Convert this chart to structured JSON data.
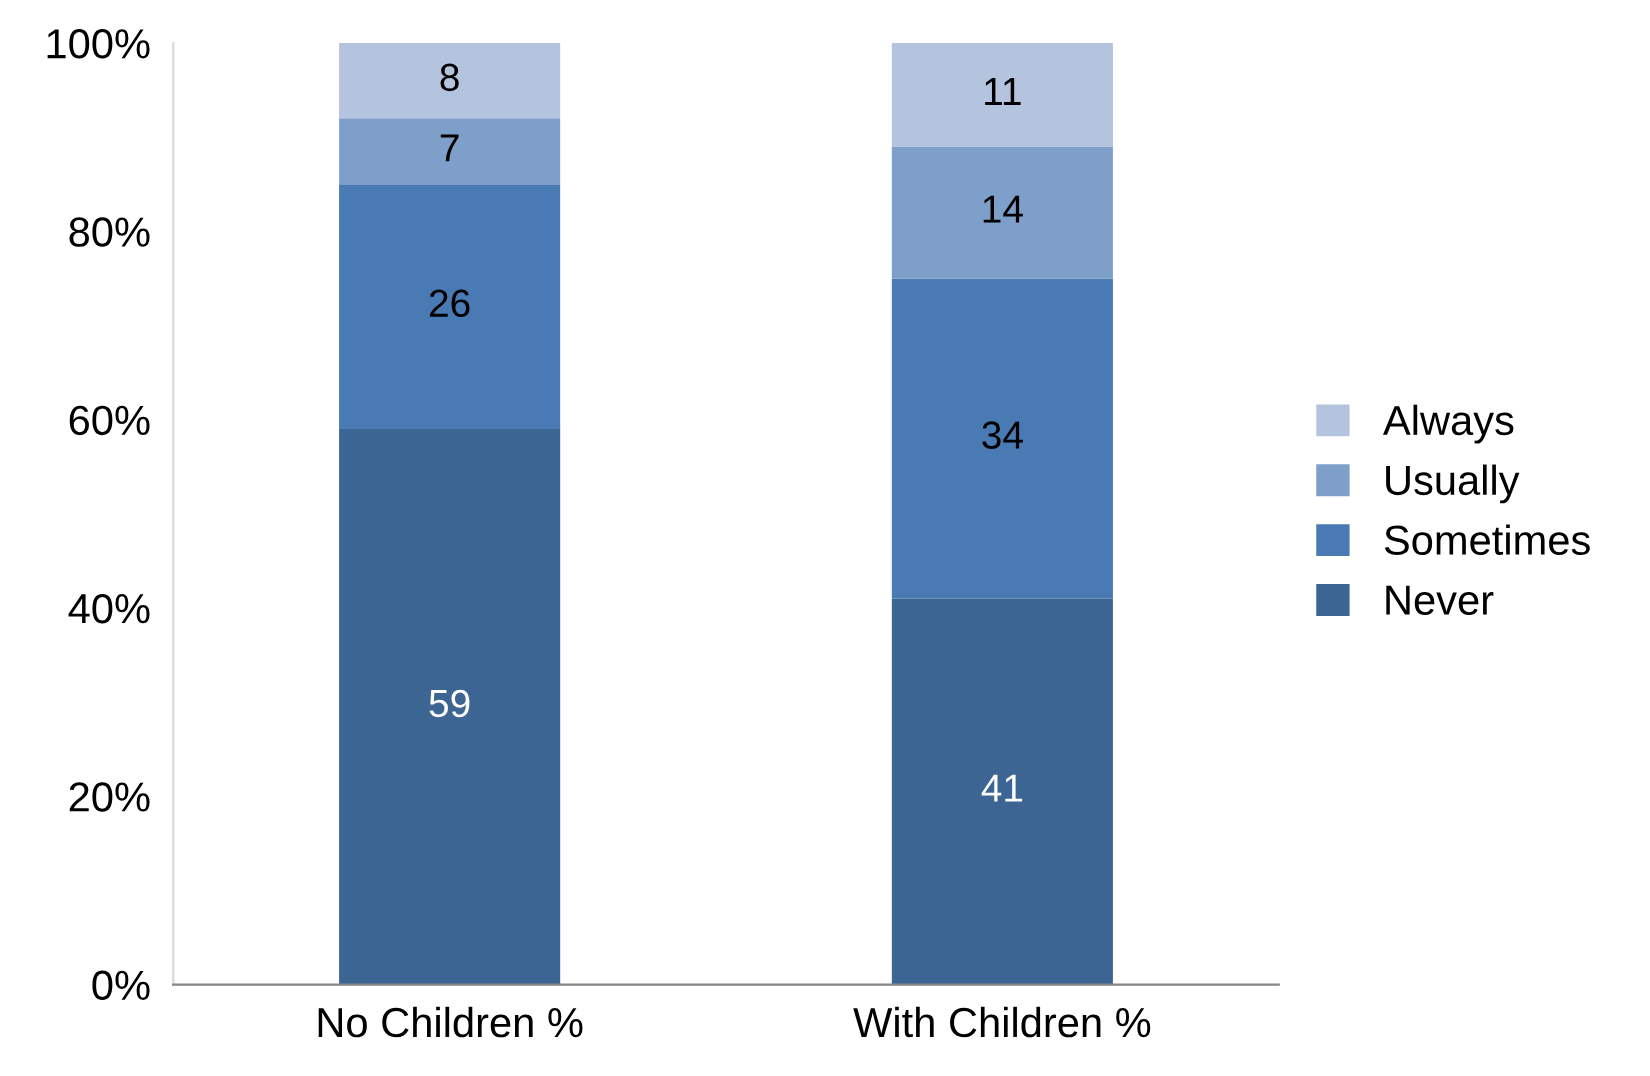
{
  "chart_data": {
    "type": "bar",
    "stacked": true,
    "categories": [
      "No Children %",
      "With Children %"
    ],
    "series": [
      {
        "name": "Never",
        "color": "#3d6593",
        "values": [
          59,
          41
        ]
      },
      {
        "name": "Sometimes",
        "color": "#4a7ab4",
        "values": [
          26,
          34
        ]
      },
      {
        "name": "Usually",
        "color": "#7f9fcb",
        "values": [
          7,
          14
        ]
      },
      {
        "name": "Always",
        "color": "#b4c4de",
        "values": [
          8,
          11
        ]
      }
    ],
    "ylim": [
      0,
      100
    ],
    "yticks": [
      {
        "value": 0,
        "label": "0%"
      },
      {
        "value": 20,
        "label": "20%"
      },
      {
        "value": 40,
        "label": "40%"
      },
      {
        "value": 60,
        "label": "60%"
      },
      {
        "value": 80,
        "label": "80%"
      },
      {
        "value": 100,
        "label": "100%"
      }
    ],
    "data_labels": true,
    "legend": "right",
    "grid": false
  }
}
